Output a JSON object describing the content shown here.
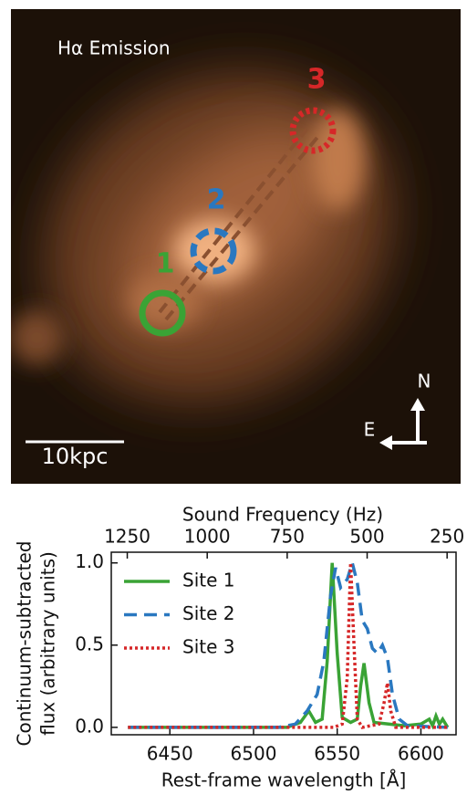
{
  "image": {
    "title": "Hα Emission",
    "scale": "10kpc",
    "north": "N",
    "east": "E",
    "sites": [
      "1",
      "2",
      "3"
    ]
  },
  "chart_data": {
    "type": "line",
    "xlabel": "Rest-frame wavelength [Å]",
    "x2label": "Sound Frequency (Hz)",
    "ylabel": [
      "Continuum-subtracted",
      "flux (arbitrary units)"
    ],
    "xlim": [
      6415,
      6621
    ],
    "xticks": [
      6450,
      6500,
      6550,
      6600
    ],
    "x2lim": [
      1300,
      222
    ],
    "x2ticks": [
      1250,
      1000,
      750,
      500,
      250
    ],
    "ylim": [
      -0.045,
      1.065
    ],
    "yticks": [
      {
        "value": 0,
        "label": "0.0"
      },
      0.5,
      {
        "value": 1,
        "label": "1.0"
      }
    ],
    "legend": "upper left",
    "series": [
      {
        "name": "Site 1",
        "color": "#3aa335",
        "style": "solid",
        "x": [
          6425,
          6520,
          6528,
          6533,
          6537,
          6541,
          6544,
          6547,
          6550,
          6553,
          6558,
          6562,
          6564,
          6566,
          6569,
          6572,
          6590,
          6600,
          6605,
          6607,
          6609,
          6611,
          6613,
          6616
        ],
        "values": [
          0,
          0,
          0.03,
          0.1,
          0.03,
          0.05,
          0.4,
          1.0,
          0.45,
          0.06,
          0.03,
          0.05,
          0.25,
          0.39,
          0.15,
          0.03,
          0.01,
          0.02,
          0.05,
          0.01,
          0.07,
          0.02,
          0.05,
          0
        ]
      },
      {
        "name": "Site 2",
        "color": "#2a78c0",
        "style": "dashed",
        "x": [
          6425,
          6515,
          6525,
          6532,
          6538,
          6542,
          6546,
          6549,
          6552,
          6556,
          6559,
          6562,
          6565,
          6568,
          6571,
          6574,
          6577,
          6580,
          6583,
          6587,
          6592,
          6616
        ],
        "values": [
          0,
          0,
          0.02,
          0.1,
          0.2,
          0.4,
          0.8,
          0.97,
          0.85,
          0.9,
          1.0,
          0.88,
          0.65,
          0.6,
          0.48,
          0.45,
          0.5,
          0.42,
          0.2,
          0.05,
          0.01,
          0
        ]
      },
      {
        "name": "Site 3",
        "color": "#d62728",
        "style": "dotted",
        "x": [
          6425,
          6548,
          6553,
          6556,
          6558,
          6560,
          6562,
          6565,
          6575,
          6578,
          6580,
          6582,
          6585,
          6616
        ],
        "values": [
          0,
          0,
          0.02,
          0.3,
          1.0,
          0.5,
          0.05,
          0,
          0.02,
          0.15,
          0.27,
          0.1,
          0,
          0
        ]
      }
    ]
  }
}
